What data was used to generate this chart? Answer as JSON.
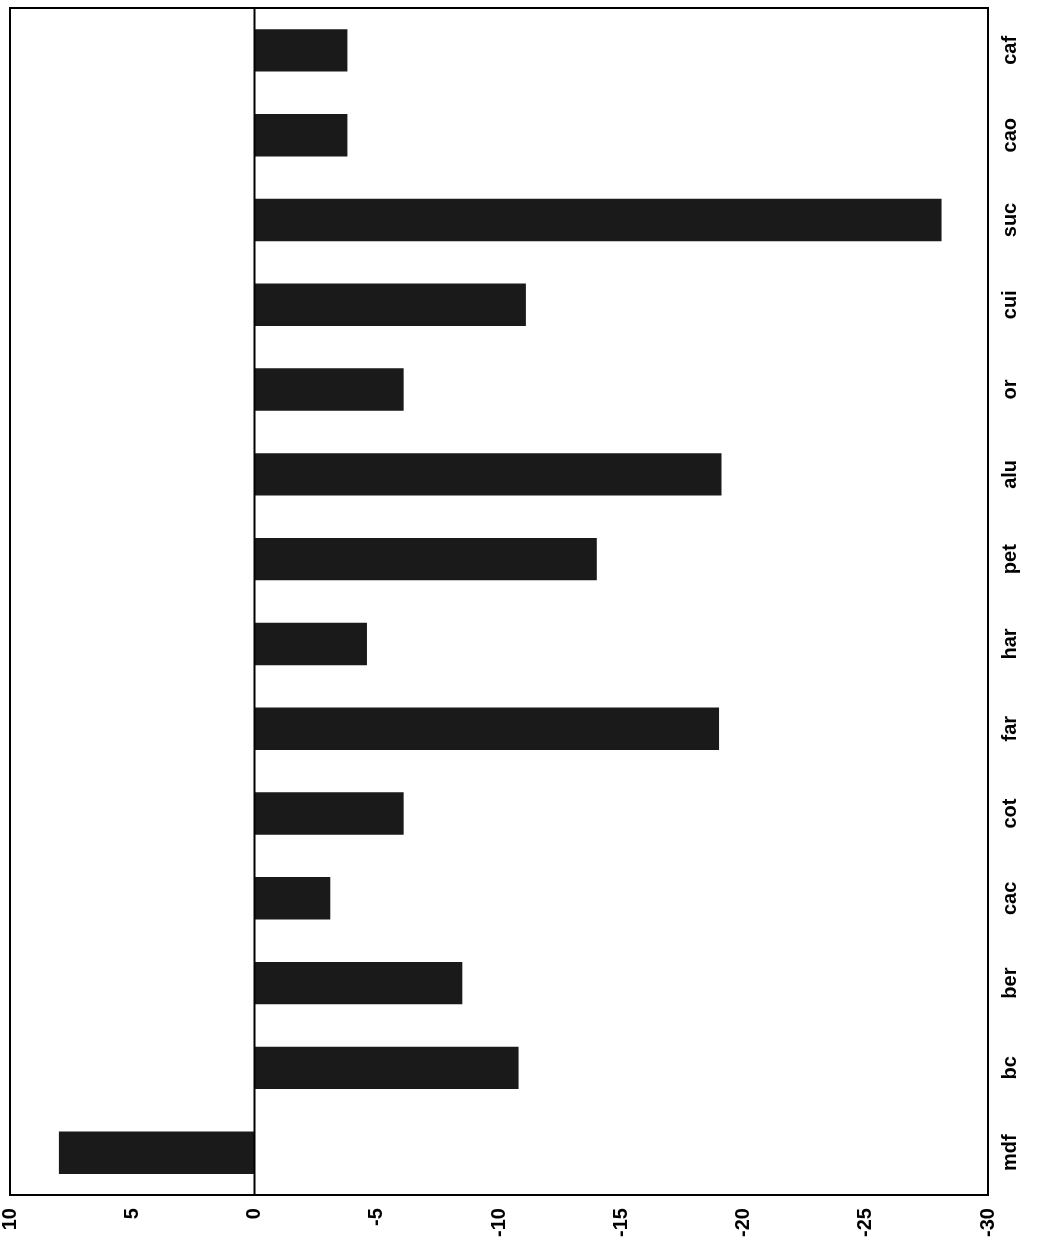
{
  "chart_data": {
    "type": "bar",
    "orientation": "horizontal",
    "categories": [
      "caf",
      "cao",
      "suc",
      "cui",
      "or",
      "alu",
      "pet",
      "har",
      "far",
      "cot",
      "cac",
      "ber",
      "bc",
      "mdf"
    ],
    "values": [
      -3.8,
      -3.8,
      -28.1,
      -11.1,
      -6.1,
      -19.1,
      -14,
      -4.6,
      -19,
      -6.1,
      -3.1,
      -8.5,
      -10.8,
      8
    ],
    "color": "#1a1a1a",
    "xlim": [
      10,
      -30
    ],
    "xticks": [
      10,
      5,
      0,
      -5,
      -10,
      -15,
      -20,
      -25,
      -30
    ],
    "grid": false,
    "legend": false,
    "ref_lines": [
      {
        "axis": "x",
        "value": 0,
        "color": "#000000"
      }
    ]
  }
}
